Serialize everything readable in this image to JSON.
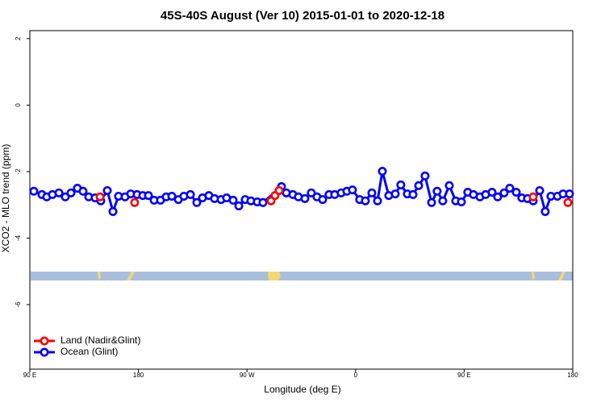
{
  "chart_data": {
    "type": "line",
    "title": "45S-40S August (Ver 10)   2015-01-01 to 2020-12-18",
    "xlabel": "Longitude (deg E)",
    "ylabel": "XCO2 - MLO trend (ppm)",
    "xlim": [
      90,
      540
    ],
    "ylim": [
      -7.94,
      2.24
    ],
    "xticks": [
      {
        "value": 90,
        "label": "90 E"
      },
      180,
      {
        "value": 270,
        "label": "90 W"
      },
      {
        "value": 360,
        "label": "0"
      },
      {
        "value": 450,
        "label": "90 E"
      },
      {
        "value": 540,
        "label": "180"
      }
    ],
    "yticks": [
      2,
      0,
      -2,
      -4,
      -6
    ],
    "legend": "bottom-left",
    "series": [
      {
        "name": "Land (Nadir&Glint)",
        "color": "#ff0000",
        "x": [
          148.2,
          176.9,
          289.9,
          293.2,
          296.6,
          507.2,
          536.0
        ],
        "values": [
          -2.76,
          -2.93,
          -2.88,
          -2.72,
          -2.57,
          -2.76,
          -2.93
        ]
      },
      {
        "name": "Ocean (Glint)",
        "color": "#0000ff",
        "x": [
          93.3,
          100.0,
          104.0,
          108.7,
          114.1,
          119.4,
          124.1,
          129.4,
          134.1,
          138.8,
          144.1,
          148.8,
          154.2,
          158.9,
          163.5,
          168.9,
          173.6,
          178.9,
          183.6,
          188.3,
          193.0,
          198.3,
          203.0,
          207.7,
          213.1,
          217.7,
          223.1,
          228.4,
          233.1,
          238.4,
          243.1,
          248.5,
          253.1,
          258.5,
          263.2,
          268.5,
          273.2,
          278.5,
          283.2,
          298.6,
          302.6,
          308.0,
          312.6,
          318.0,
          323.3,
          328.0,
          332.7,
          338.0,
          342.7,
          348.1,
          352.8,
          357.4,
          363.4,
          368.1,
          373.5,
          378.2,
          382.2,
          387.5,
          392.9,
          397.5,
          402.9,
          407.6,
          412.3,
          417.6,
          423.0,
          427.6,
          432.3,
          437.7,
          443.0,
          447.7,
          453.0,
          457.7,
          463.1,
          467.8,
          473.1,
          477.8,
          483.1,
          487.8,
          493.2,
          497.8,
          502.5,
          507.2,
          512.6,
          517.2,
          521.9,
          527.3,
          532.0,
          537.3
        ],
        "values": [
          -2.59,
          -2.69,
          -2.76,
          -2.69,
          -2.64,
          -2.76,
          -2.64,
          -2.5,
          -2.59,
          -2.76,
          -2.79,
          -2.88,
          -2.57,
          -3.2,
          -2.74,
          -2.76,
          -2.67,
          -2.69,
          -2.72,
          -2.72,
          -2.86,
          -2.86,
          -2.76,
          -2.74,
          -2.84,
          -2.74,
          -2.69,
          -2.93,
          -2.79,
          -2.72,
          -2.81,
          -2.84,
          -2.79,
          -2.86,
          -3.03,
          -2.84,
          -2.88,
          -2.91,
          -2.93,
          -2.45,
          -2.64,
          -2.69,
          -2.76,
          -2.81,
          -2.64,
          -2.76,
          -2.84,
          -2.69,
          -2.69,
          -2.64,
          -2.59,
          -2.55,
          -2.84,
          -2.88,
          -2.64,
          -2.88,
          -1.99,
          -2.72,
          -2.67,
          -2.4,
          -2.67,
          -2.69,
          -2.42,
          -2.13,
          -2.93,
          -2.59,
          -2.88,
          -2.42,
          -2.88,
          -2.91,
          -2.62,
          -2.69,
          -2.76,
          -2.69,
          -2.62,
          -2.76,
          -2.64,
          -2.5,
          -2.62,
          -2.79,
          -2.81,
          -2.88,
          -2.57,
          -3.2,
          -2.74,
          -2.74,
          -2.67,
          -2.67
        ]
      }
    ]
  }
}
